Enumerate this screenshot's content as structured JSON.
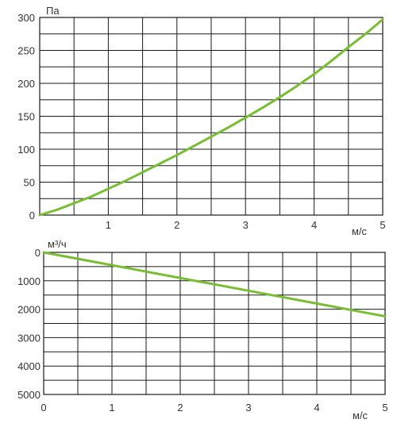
{
  "chart_data": [
    {
      "type": "line",
      "ylabel": "Па",
      "xlabel": "м/с",
      "x_ticks": [
        "1",
        "2",
        "3",
        "4",
        "5"
      ],
      "y_ticks": [
        "300",
        "250",
        "200",
        "150",
        "100",
        "50",
        "0"
      ],
      "xlim": [
        0,
        5
      ],
      "ylim": [
        0,
        300
      ],
      "x_grid_step": 0.5,
      "y_grid_step": 25,
      "grid": true,
      "series": [
        {
          "color": "#78be32",
          "x": [
            0,
            0.25,
            0.5,
            0.75,
            1,
            1.25,
            1.5,
            1.75,
            2,
            2.25,
            2.5,
            2.75,
            3,
            3.25,
            3.5,
            3.75,
            4,
            4.25,
            4.5,
            4.75,
            5
          ],
          "y": [
            0,
            8,
            18,
            28,
            40,
            52,
            65,
            78,
            91,
            105,
            119,
            133,
            148,
            163,
            179,
            196,
            214,
            234,
            255,
            275,
            297
          ]
        }
      ]
    },
    {
      "type": "line",
      "ylabel": "м³/ч",
      "xlabel": "м/с",
      "x_ticks": [
        "0",
        "1",
        "2",
        "3",
        "4",
        "5"
      ],
      "y_ticks": [
        "0",
        "1000",
        "2000",
        "3000",
        "4000",
        "5000"
      ],
      "xlim": [
        0,
        5
      ],
      "ylim": [
        0,
        5000
      ],
      "y_inverted": true,
      "x_grid_step": 0.5,
      "y_grid_step": 500,
      "grid": true,
      "series": [
        {
          "color": "#78be32",
          "x": [
            0,
            5
          ],
          "y": [
            0,
            2250
          ]
        }
      ]
    }
  ]
}
